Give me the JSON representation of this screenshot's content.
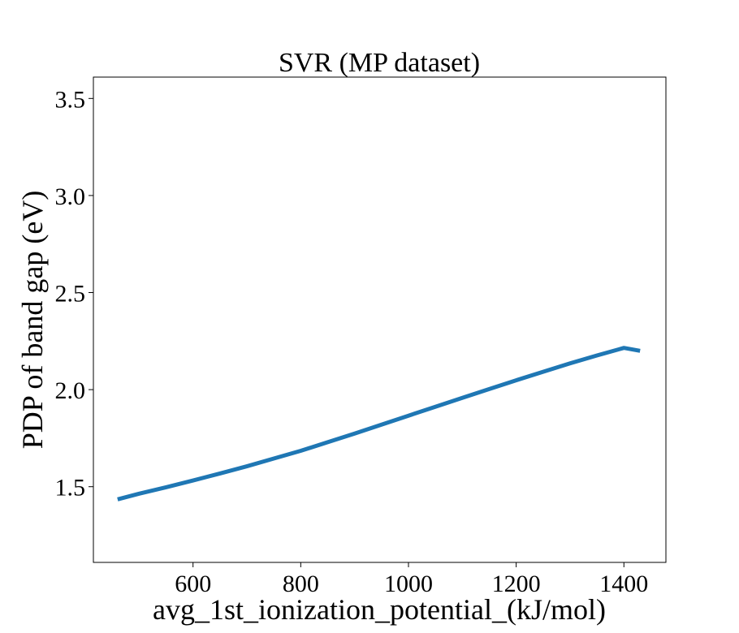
{
  "chart_data": {
    "type": "line",
    "title": "SVR (MP dataset)",
    "xlabel": "avg_1st_ionization_potential_(kJ/mol)",
    "ylabel": "PDP of band gap (eV)",
    "xlim": [
      415,
      1478
    ],
    "ylim": [
      1.11,
      3.61
    ],
    "xticks": [
      600,
      800,
      1000,
      1200,
      1400
    ],
    "xtick_labels": [
      "600",
      "800",
      "1000",
      "1200",
      "1400"
    ],
    "yticks": [
      1.5,
      2.0,
      2.5,
      3.0,
      3.5
    ],
    "ytick_labels": [
      "1.5",
      "2.0",
      "2.5",
      "3.0",
      "3.5"
    ],
    "grid": false,
    "series": [
      {
        "color": "#1f77b4",
        "x": [
          460,
          500,
          550,
          600,
          650,
          700,
          750,
          800,
          850,
          900,
          950,
          1000,
          1050,
          1100,
          1150,
          1200,
          1250,
          1300,
          1350,
          1400,
          1430
        ],
        "y": [
          1.435,
          1.464,
          1.497,
          1.532,
          1.568,
          1.605,
          1.645,
          1.685,
          1.729,
          1.774,
          1.82,
          1.866,
          1.912,
          1.958,
          2.003,
          2.048,
          2.092,
          2.135,
          2.176,
          2.215,
          2.2
        ]
      }
    ]
  }
}
